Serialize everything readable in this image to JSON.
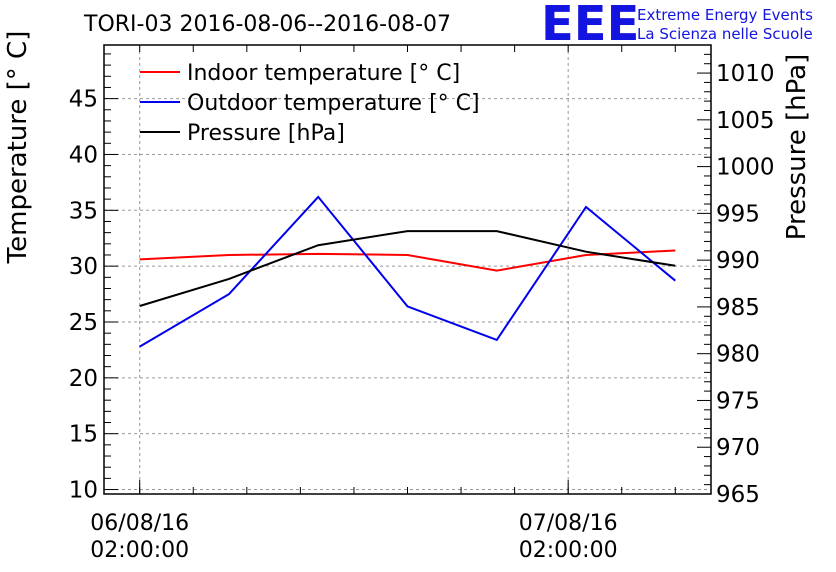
{
  "header": {
    "title": "TORI-03 2016-08-06--2016-08-07",
    "logo_text": "EEE",
    "logo_line1": "Extreme Energy Events",
    "logo_line2": "La Scienza nelle Scuole",
    "logo_color": "#1414e0"
  },
  "chart_data": {
    "type": "line",
    "x_tick_labels": [
      {
        "date": "06/08/16",
        "time": "02:00:00"
      },
      {
        "date": "07/08/16",
        "time": "02:00:00"
      }
    ],
    "ylabel_left": "Temperature [° C]",
    "ylabel_right": "Pressure [hPa]",
    "ylim_left": [
      9.6,
      49.8
    ],
    "ylim_right": [
      965,
      1013
    ],
    "yticks_left": [
      10,
      15,
      20,
      25,
      30,
      35,
      40,
      45
    ],
    "yticks_right": [
      965,
      970,
      975,
      980,
      985,
      990,
      995,
      1000,
      1005,
      1010
    ],
    "grid": true,
    "legend_position": "top-left",
    "x_hours": [
      2,
      7,
      12,
      17,
      22,
      27,
      32
    ],
    "series": [
      {
        "name": "Indoor temperature [° C]",
        "axis": "left",
        "color": "#ff0000",
        "values": [
          30.6,
          31.0,
          31.1,
          31.0,
          29.6,
          31.0,
          31.4
        ]
      },
      {
        "name": "Outdoor temperature [° C]",
        "axis": "left",
        "color": "#0000ee",
        "values": [
          22.8,
          27.5,
          36.2,
          26.4,
          23.4,
          35.3,
          28.7
        ]
      },
      {
        "name": "Pressure [hPa]",
        "axis": "right",
        "color": "#000000",
        "values": [
          985.1,
          988.0,
          991.6,
          993.1,
          993.1,
          990.9,
          989.4
        ]
      }
    ]
  }
}
